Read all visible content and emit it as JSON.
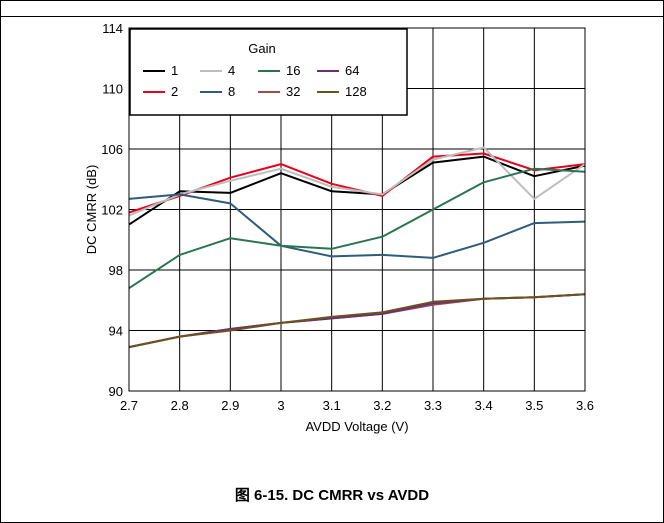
{
  "caption": "图 6-15. DC CMRR vs AVDD",
  "chart_data": {
    "type": "line",
    "title": "",
    "xlabel": "AVDD Voltage (V)",
    "ylabel": "DC CMRR (dB)",
    "xlim": [
      2.7,
      3.6
    ],
    "ylim": [
      90,
      114
    ],
    "x": [
      2.7,
      2.8,
      2.9,
      3.0,
      3.1,
      3.2,
      3.3,
      3.4,
      3.5,
      3.6
    ],
    "x_tick_labels": [
      "2.7",
      "2.8",
      "2.9",
      "3",
      "3.1",
      "3.2",
      "3.3",
      "3.4",
      "3.5",
      "3.6"
    ],
    "y_ticks": [
      90,
      94,
      98,
      102,
      106,
      110,
      114
    ],
    "grid": true,
    "legend_title": "Gain",
    "legend_position": "top-left",
    "series": [
      {
        "name": "1",
        "color": "#000000",
        "values": [
          101.0,
          103.2,
          103.1,
          104.4,
          103.2,
          103.0,
          105.1,
          105.5,
          104.2,
          104.9
        ]
      },
      {
        "name": "2",
        "color": "#e8001c",
        "values": [
          101.8,
          102.9,
          104.1,
          105.0,
          103.7,
          102.9,
          105.5,
          105.7,
          104.6,
          105.0
        ]
      },
      {
        "name": "4",
        "color": "#bdbdbd",
        "values": [
          101.6,
          103.0,
          103.9,
          104.7,
          103.5,
          103.0,
          105.3,
          106.1,
          102.7,
          105.0
        ]
      },
      {
        "name": "8",
        "color": "#2e5c7a",
        "values": [
          102.7,
          103.0,
          102.4,
          99.6,
          98.9,
          99.0,
          98.8,
          99.8,
          101.1,
          101.2
        ]
      },
      {
        "name": "16",
        "color": "#2a7550",
        "values": [
          96.8,
          99.0,
          100.1,
          99.6,
          99.4,
          100.2,
          102.0,
          103.8,
          104.7,
          104.5
        ]
      },
      {
        "name": "32",
        "color": "#a0494f",
        "values": [
          92.9,
          93.6,
          94.1,
          94.5,
          94.8,
          95.1,
          95.7,
          96.1,
          96.2,
          96.4
        ]
      },
      {
        "name": "64",
        "color": "#6b2d7a",
        "values": [
          92.9,
          93.6,
          94.1,
          94.5,
          94.8,
          95.1,
          95.8,
          96.1,
          96.2,
          96.4
        ]
      },
      {
        "name": "128",
        "color": "#6b5320",
        "values": [
          92.9,
          93.6,
          94.0,
          94.5,
          94.9,
          95.2,
          95.9,
          96.1,
          96.2,
          96.4
        ]
      }
    ]
  }
}
